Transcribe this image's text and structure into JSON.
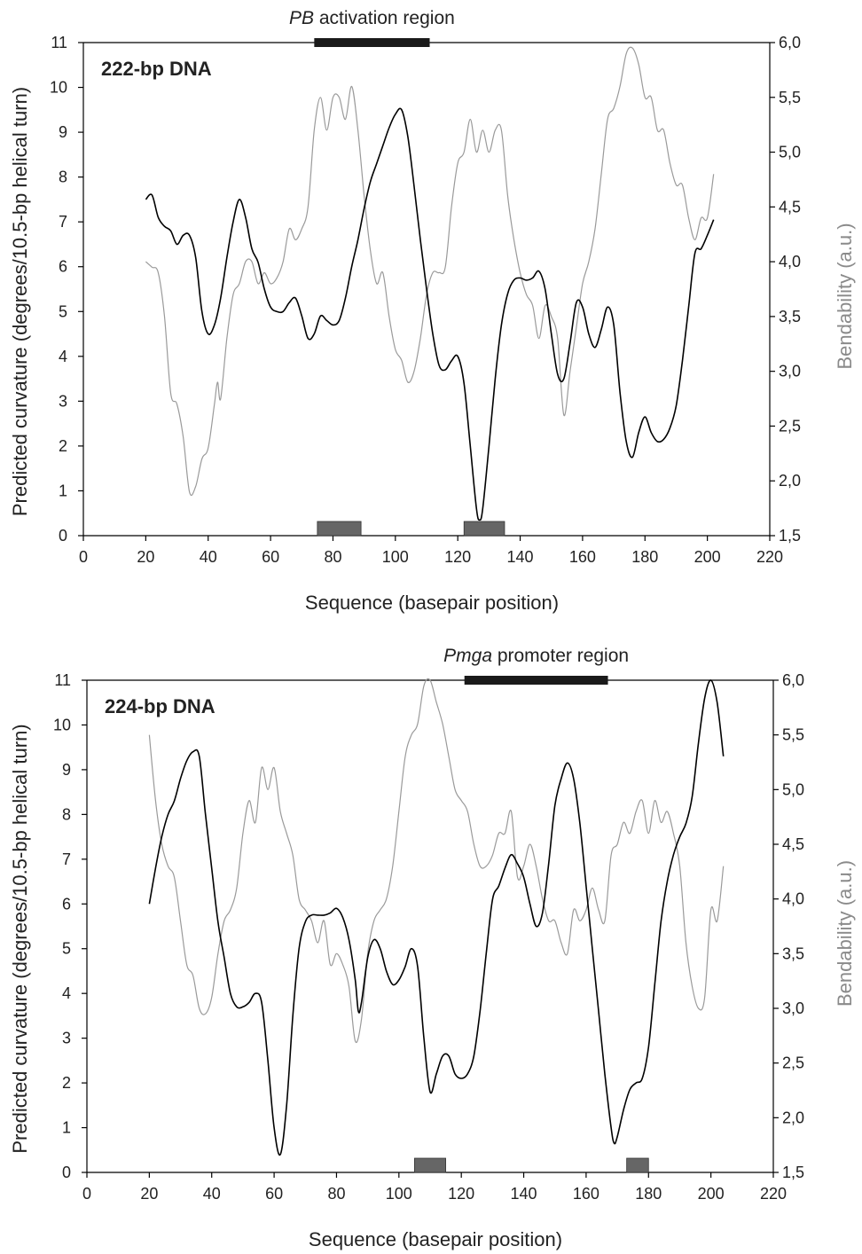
{
  "chart_data": [
    {
      "type": "line",
      "panel_label": "222-bp DNA",
      "region": {
        "prefix": "PB",
        "suffix": " activation region",
        "start": 74,
        "end": 111
      },
      "boxes": [
        {
          "start": 75,
          "end": 89
        },
        {
          "start": 122,
          "end": 135
        }
      ],
      "xlabel": "Sequence (basepair position)",
      "ylabel": "Predicted curvature (degrees/10.5-bp helical turn)",
      "y2label": "Bendability (a.u.)",
      "xlim": [
        0,
        220
      ],
      "ylim": [
        0,
        11
      ],
      "y2lim": [
        1.5,
        6.0
      ],
      "xticks": [
        "0",
        "20",
        "40",
        "60",
        "80",
        "100",
        "120",
        "140",
        "160",
        "180",
        "200",
        "220"
      ],
      "yticks": [
        "0",
        "1",
        "2",
        "3",
        "4",
        "5",
        "6",
        "7",
        "8",
        "9",
        "10",
        "11"
      ],
      "y2ticks": [
        "1,5",
        "2,0",
        "2,5",
        "3,0",
        "3,5",
        "4,0",
        "4,5",
        "5,0",
        "5,5",
        "6,0"
      ],
      "series": [
        {
          "axis": "left",
          "color": "#000000",
          "x": [
            20,
            22,
            24,
            26,
            28,
            30,
            32,
            34,
            36,
            38,
            40,
            42,
            44,
            46,
            48,
            50,
            52,
            54,
            56,
            58,
            60,
            62,
            64,
            66,
            68,
            70,
            72,
            74,
            76,
            78,
            80,
            82,
            84,
            86,
            88,
            90,
            92,
            94,
            96,
            98,
            100,
            102,
            104,
            106,
            108,
            110,
            112,
            114,
            116,
            118,
            120,
            122,
            124,
            126,
            127,
            128,
            130,
            132,
            134,
            136,
            138,
            140,
            142,
            144,
            146,
            148,
            150,
            152,
            154,
            156,
            158,
            160,
            162,
            164,
            166,
            168,
            170,
            172,
            174,
            176,
            178,
            180,
            182,
            184,
            186,
            188,
            190,
            192,
            194,
            196,
            198,
            200,
            202
          ],
          "y": [
            7.5,
            7.6,
            7.1,
            6.9,
            6.8,
            6.5,
            6.7,
            6.7,
            6.2,
            5.0,
            4.5,
            4.7,
            5.3,
            6.2,
            7.0,
            7.5,
            7.1,
            6.4,
            6.1,
            5.5,
            5.1,
            5.0,
            5.0,
            5.2,
            5.3,
            4.9,
            4.4,
            4.5,
            4.9,
            4.8,
            4.7,
            4.8,
            5.3,
            6.0,
            6.6,
            7.3,
            7.9,
            8.3,
            8.7,
            9.1,
            9.4,
            9.5,
            8.9,
            7.8,
            6.6,
            5.5,
            4.5,
            3.8,
            3.7,
            3.9,
            4.0,
            3.4,
            2.0,
            0.6,
            0.35,
            0.6,
            2.0,
            3.5,
            4.7,
            5.4,
            5.7,
            5.75,
            5.7,
            5.75,
            5.9,
            5.5,
            4.5,
            3.6,
            3.5,
            4.3,
            5.2,
            5.1,
            4.5,
            4.2,
            4.6,
            5.1,
            4.7,
            3.2,
            2.1,
            1.75,
            2.3,
            2.65,
            2.3,
            2.1,
            2.15,
            2.4,
            2.9,
            3.9,
            5.1,
            6.3,
            6.4,
            6.7,
            7.05
          ]
        },
        {
          "axis": "right",
          "color": "#9a9a9a",
          "x": [
            20,
            22,
            24,
            26,
            28,
            30,
            32,
            34,
            36,
            38,
            40,
            42,
            43,
            44,
            46,
            48,
            50,
            52,
            54,
            56,
            58,
            60,
            62,
            64,
            66,
            68,
            70,
            72,
            74,
            76,
            78,
            80,
            82,
            84,
            86,
            88,
            90,
            92,
            94,
            96,
            98,
            100,
            102,
            104,
            106,
            108,
            110,
            112,
            114,
            116,
            118,
            120,
            122,
            124,
            126,
            128,
            130,
            132,
            134,
            136,
            138,
            140,
            142,
            144,
            146,
            148,
            150,
            152,
            154,
            156,
            158,
            160,
            162,
            164,
            166,
            168,
            170,
            172,
            174,
            176,
            178,
            180,
            182,
            184,
            186,
            188,
            190,
            192,
            194,
            196,
            198,
            200,
            202
          ],
          "y": [
            4.0,
            3.95,
            3.9,
            3.5,
            2.8,
            2.7,
            2.4,
            1.9,
            1.95,
            2.2,
            2.3,
            2.7,
            2.9,
            2.75,
            3.3,
            3.7,
            3.8,
            4.0,
            4.0,
            3.8,
            3.9,
            3.8,
            3.85,
            4.0,
            4.3,
            4.2,
            4.3,
            4.5,
            5.2,
            5.5,
            5.2,
            5.5,
            5.5,
            5.3,
            5.6,
            5.2,
            4.6,
            4.1,
            3.8,
            3.9,
            3.5,
            3.2,
            3.1,
            2.9,
            3.0,
            3.3,
            3.7,
            3.9,
            3.9,
            3.95,
            4.5,
            4.9,
            5.0,
            5.3,
            5.0,
            5.2,
            5.0,
            5.2,
            5.2,
            4.6,
            4.2,
            3.9,
            3.7,
            3.6,
            3.3,
            3.6,
            3.5,
            3.3,
            2.6,
            3.0,
            3.4,
            3.8,
            4.0,
            4.3,
            4.8,
            5.3,
            5.4,
            5.6,
            5.9,
            5.95,
            5.8,
            5.5,
            5.5,
            5.2,
            5.2,
            4.9,
            4.7,
            4.7,
            4.4,
            4.2,
            4.4,
            4.4,
            4.8
          ]
        }
      ]
    },
    {
      "type": "line",
      "panel_label": "224-bp DNA",
      "region": {
        "prefix": "Pmga",
        "suffix": " promoter region",
        "start": 121,
        "end": 167
      },
      "boxes": [
        {
          "start": 105,
          "end": 115
        },
        {
          "start": 173,
          "end": 180
        }
      ],
      "xlabel": "Sequence (basepair position)",
      "ylabel": "Predicted curvature (degrees/10.5-bp helical turn)",
      "y2label": "Bendability (a.u.)",
      "xlim": [
        0,
        220
      ],
      "ylim": [
        0,
        11
      ],
      "y2lim": [
        1.5,
        6.0
      ],
      "xticks": [
        "0",
        "20",
        "40",
        "60",
        "80",
        "100",
        "120",
        "140",
        "160",
        "180",
        "200",
        "220"
      ],
      "yticks": [
        "0",
        "1",
        "2",
        "3",
        "4",
        "5",
        "6",
        "7",
        "8",
        "9",
        "10",
        "11"
      ],
      "y2ticks": [
        "1,5",
        "2,0",
        "2,5",
        "3,0",
        "3,5",
        "4,0",
        "4,5",
        "5,0",
        "5,5",
        "6,0"
      ],
      "series": [
        {
          "axis": "left",
          "color": "#000000",
          "x": [
            20,
            22,
            24,
            26,
            28,
            30,
            32,
            34,
            36,
            38,
            40,
            42,
            44,
            46,
            48,
            50,
            52,
            54,
            56,
            58,
            60,
            62,
            64,
            66,
            68,
            70,
            72,
            74,
            76,
            78,
            80,
            82,
            84,
            86,
            87,
            88,
            90,
            92,
            94,
            96,
            98,
            100,
            102,
            104,
            106,
            108,
            110,
            112,
            114,
            116,
            118,
            120,
            122,
            124,
            126,
            128,
            130,
            132,
            134,
            136,
            138,
            140,
            142,
            144,
            146,
            148,
            150,
            152,
            154,
            156,
            158,
            160,
            162,
            164,
            166,
            168,
            169,
            170,
            172,
            174,
            176,
            178,
            180,
            182,
            184,
            186,
            188,
            190,
            192,
            194,
            196,
            198,
            200,
            202,
            204
          ],
          "y": [
            6.0,
            6.8,
            7.5,
            8.0,
            8.3,
            8.8,
            9.2,
            9.4,
            9.3,
            8.0,
            6.8,
            5.6,
            4.8,
            4.0,
            3.7,
            3.7,
            3.8,
            4.0,
            3.8,
            2.5,
            1.0,
            0.4,
            1.5,
            3.5,
            5.0,
            5.6,
            5.75,
            5.75,
            5.75,
            5.8,
            5.9,
            5.7,
            5.2,
            4.3,
            3.6,
            3.8,
            4.8,
            5.2,
            5.0,
            4.5,
            4.2,
            4.3,
            4.6,
            5.0,
            4.6,
            3.0,
            1.8,
            2.2,
            2.6,
            2.6,
            2.2,
            2.1,
            2.2,
            2.6,
            3.6,
            4.9,
            6.1,
            6.4,
            6.8,
            7.1,
            6.9,
            6.6,
            6.0,
            5.5,
            5.8,
            6.9,
            8.2,
            8.8,
            9.15,
            8.8,
            7.8,
            6.4,
            5.0,
            3.6,
            2.2,
            1.0,
            0.65,
            0.8,
            1.4,
            1.85,
            2.0,
            2.1,
            2.8,
            4.2,
            5.6,
            6.5,
            7.1,
            7.5,
            7.8,
            8.4,
            9.6,
            10.6,
            11.0,
            10.5,
            9.3
          ]
        },
        {
          "axis": "right",
          "color": "#9a9a9a",
          "x": [
            20,
            22,
            24,
            26,
            28,
            30,
            32,
            34,
            36,
            38,
            40,
            42,
            44,
            46,
            48,
            50,
            52,
            54,
            56,
            58,
            60,
            62,
            64,
            66,
            68,
            70,
            72,
            74,
            76,
            78,
            80,
            82,
            84,
            86,
            88,
            90,
            92,
            94,
            96,
            98,
            100,
            102,
            104,
            106,
            108,
            110,
            112,
            114,
            116,
            118,
            120,
            122,
            124,
            126,
            128,
            130,
            132,
            134,
            136,
            138,
            140,
            142,
            144,
            146,
            148,
            150,
            152,
            154,
            156,
            158,
            160,
            162,
            164,
            166,
            168,
            170,
            172,
            174,
            176,
            178,
            180,
            182,
            184,
            186,
            188,
            190,
            192,
            194,
            196,
            198,
            200,
            202,
            204
          ],
          "y": [
            5.5,
            4.9,
            4.5,
            4.3,
            4.2,
            3.8,
            3.4,
            3.3,
            3.0,
            2.95,
            3.1,
            3.5,
            3.8,
            3.9,
            4.1,
            4.6,
            4.9,
            4.7,
            5.2,
            5.0,
            5.2,
            4.8,
            4.6,
            4.4,
            4.0,
            3.9,
            3.8,
            3.6,
            3.8,
            3.4,
            3.5,
            3.4,
            3.2,
            2.7,
            2.9,
            3.5,
            3.8,
            3.9,
            4.0,
            4.3,
            4.8,
            5.3,
            5.5,
            5.6,
            5.95,
            6.0,
            5.8,
            5.6,
            5.3,
            5.0,
            4.9,
            4.8,
            4.5,
            4.3,
            4.3,
            4.4,
            4.6,
            4.6,
            4.8,
            4.2,
            4.3,
            4.5,
            4.3,
            4.0,
            3.8,
            3.8,
            3.6,
            3.5,
            3.9,
            3.8,
            3.9,
            4.1,
            3.9,
            3.8,
            4.4,
            4.5,
            4.7,
            4.6,
            4.8,
            4.9,
            4.6,
            4.9,
            4.7,
            4.8,
            4.6,
            4.3,
            3.6,
            3.2,
            3.0,
            3.1,
            3.9,
            3.8,
            4.3
          ]
        }
      ]
    }
  ]
}
